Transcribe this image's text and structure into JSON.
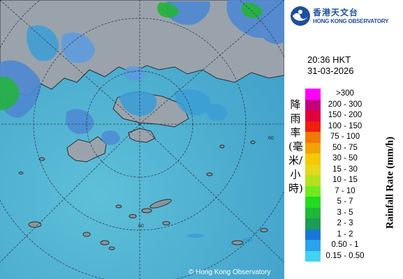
{
  "organization": {
    "name_cn": "香港天文台",
    "name_en": "HONG KONG OBSERVATORY"
  },
  "observation": {
    "time": "20:36 HKT",
    "date": "31-03-2026"
  },
  "legend": {
    "title_en": "Rainfall Rate (mm/h)",
    "title_cn": "降雨率(毫米/小時)",
    "classes": [
      {
        "label": ">300",
        "color": "#ff00ff"
      },
      {
        "label": "200 - 300",
        "color": "#c4007f"
      },
      {
        "label": "150 - 200",
        "color": "#e0003b"
      },
      {
        "label": "100 - 150",
        "color": "#f01e0c"
      },
      {
        "label": "75 - 100",
        "color": "#f07a08"
      },
      {
        "label": "50 - 75",
        "color": "#f1a305"
      },
      {
        "label": "30 - 50",
        "color": "#f5c902"
      },
      {
        "label": "15 - 30",
        "color": "#e8d61c"
      },
      {
        "label": "10 - 15",
        "color": "#b4e21d"
      },
      {
        "label": "7 - 10",
        "color": "#70ea1f"
      },
      {
        "label": "5 - 7",
        "color": "#22dc1f"
      },
      {
        "label": "3 - 5",
        "color": "#1eb839"
      },
      {
        "label": "2 - 3",
        "color": "#1c9c52"
      },
      {
        "label": "1 - 2",
        "color": "#1878d8"
      },
      {
        "label": "0.50 - 1",
        "color": "#2aa2ee"
      },
      {
        "label": "0.15 - 0.50",
        "color": "#40d4f2"
      }
    ]
  },
  "map": {
    "range_ring_label": "60",
    "copyright": "© Hong Kong Observatory",
    "colors": {
      "sea": "#46a8cc",
      "land": "#9aa3ab",
      "ring": "#2c3e4c"
    }
  }
}
